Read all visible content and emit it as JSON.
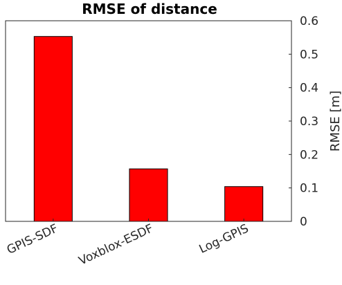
{
  "chart_data": {
    "type": "bar",
    "title": "RMSE of distance",
    "categories": [
      "GPIS-SDF",
      "Voxblox-ESDF",
      "Log-GPIS"
    ],
    "values": [
      0.553,
      0.157,
      0.104
    ],
    "xlabel": "",
    "ylabel": "RMSE [m]",
    "ylim": [
      0,
      0.6
    ],
    "yticks": [
      0,
      0.1,
      0.2,
      0.3,
      0.4,
      0.5,
      0.6
    ],
    "ytick_labels": [
      "0",
      "0.1",
      "0.2",
      "0.3",
      "0.4",
      "0.5",
      "0.6"
    ],
    "y_axis_side": "right",
    "grid": false,
    "bar_color": "#ff0000",
    "bar_edge_color": "#000000"
  }
}
